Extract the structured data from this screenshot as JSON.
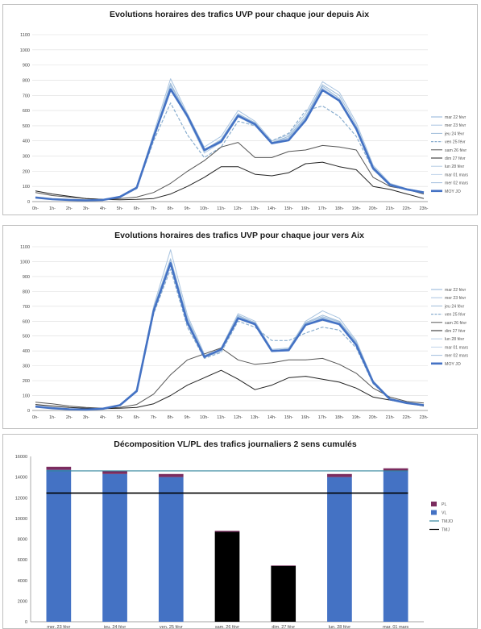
{
  "chart_data": [
    {
      "type": "line",
      "title": "Evolutions horaires des trafics UVP pour chaque jour  depuis Aix",
      "x": [
        "0h-",
        "1h-",
        "2h-",
        "3h-",
        "4h-",
        "5h-",
        "6h-",
        "7h-",
        "8h-",
        "9h-",
        "10h-",
        "11h-",
        "12h-",
        "13h-",
        "14h-",
        "15h-",
        "16h-",
        "17h-",
        "18h-",
        "19h-",
        "20h-",
        "21h-",
        "22h-",
        "23h-"
      ],
      "ylim": [
        0,
        1100
      ],
      "yticks": [
        0,
        100,
        200,
        300,
        400,
        500,
        600,
        700,
        800,
        900,
        1000,
        1100
      ],
      "grid": true,
      "legend_position": "right",
      "series": [
        {
          "name": "mar 22 févr",
          "color": "#8fb3d9",
          "dash": false,
          "width": 1,
          "values": [
            25,
            15,
            10,
            8,
            10,
            30,
            90,
            420,
            760,
            560,
            330,
            400,
            570,
            510,
            390,
            420,
            550,
            760,
            680,
            480,
            220,
            110,
            80,
            60
          ]
        },
        {
          "name": "mer 23 févr",
          "color": "#a9c4e0",
          "dash": false,
          "width": 1,
          "values": [
            30,
            18,
            12,
            9,
            12,
            35,
            95,
            450,
            810,
            580,
            360,
            430,
            600,
            530,
            400,
            440,
            580,
            790,
            720,
            520,
            240,
            120,
            85,
            65
          ]
        },
        {
          "name": "jeu 24 févr",
          "color": "#9dbbd9",
          "dash": false,
          "width": 1,
          "values": [
            28,
            16,
            11,
            8,
            11,
            32,
            92,
            430,
            780,
            570,
            340,
            410,
            580,
            520,
            390,
            430,
            560,
            770,
            700,
            500,
            230,
            115,
            82,
            62
          ]
        },
        {
          "name": "ven 25 févr",
          "color": "#8aaecf",
          "dash": true,
          "width": 1.2,
          "values": [
            28,
            16,
            11,
            8,
            11,
            30,
            85,
            400,
            650,
            440,
            290,
            360,
            530,
            500,
            400,
            450,
            600,
            630,
            560,
            430,
            210,
            110,
            80,
            60
          ]
        },
        {
          "name": "sam 26 févr",
          "color": "#555555",
          "dash": false,
          "width": 1,
          "values": [
            60,
            40,
            30,
            20,
            15,
            20,
            30,
            60,
            120,
            200,
            270,
            360,
            390,
            290,
            290,
            330,
            340,
            370,
            360,
            340,
            160,
            100,
            80,
            50
          ]
        },
        {
          "name": "dim 27 févr",
          "color": "#222222",
          "dash": false,
          "width": 1,
          "values": [
            70,
            50,
            35,
            20,
            15,
            12,
            15,
            20,
            50,
            100,
            160,
            230,
            230,
            180,
            170,
            190,
            250,
            260,
            230,
            210,
            100,
            80,
            50,
            20
          ]
        },
        {
          "name": "lun 28 févr",
          "color": "#b3cbe4",
          "dash": false,
          "width": 1,
          "values": [
            25,
            15,
            10,
            8,
            10,
            28,
            88,
            410,
            740,
            550,
            320,
            390,
            560,
            500,
            380,
            400,
            530,
            740,
            660,
            470,
            210,
            105,
            78,
            58
          ]
        },
        {
          "name": "mar 01 mars",
          "color": "#c0d4ea",
          "dash": false,
          "width": 1,
          "values": [
            26,
            15,
            10,
            8,
            10,
            30,
            90,
            420,
            760,
            565,
            335,
            400,
            570,
            505,
            385,
            410,
            540,
            750,
            670,
            480,
            215,
            108,
            80,
            60
          ]
        },
        {
          "name": "mer 02 mars",
          "color": "#a0bedd",
          "dash": false,
          "width": 1,
          "values": [
            27,
            16,
            11,
            8,
            11,
            31,
            92,
            425,
            770,
            570,
            340,
            405,
            575,
            510,
            390,
            420,
            550,
            760,
            680,
            485,
            220,
            110,
            81,
            61
          ]
        },
        {
          "name": "MOY JO",
          "color": "#4472c4",
          "dash": false,
          "width": 2.6,
          "values": [
            27,
            16,
            11,
            8,
            11,
            31,
            92,
            425,
            740,
            565,
            340,
            395,
            565,
            510,
            385,
            405,
            535,
            735,
            665,
            480,
            220,
            110,
            80,
            60
          ]
        }
      ]
    },
    {
      "type": "line",
      "title": "Evolutions horaires des trafics UVP pour chaque jour  vers Aix",
      "x": [
        "0h-",
        "1h-",
        "2h-",
        "3h-",
        "4h-",
        "5h-",
        "6h-",
        "7h-",
        "8h-",
        "9h-",
        "10h-",
        "11h-",
        "12h-",
        "13h-",
        "14h-",
        "15h-",
        "16h-",
        "17h-",
        "18h-",
        "19h-",
        "20h-",
        "21h-",
        "22h-",
        "23h-"
      ],
      "ylim": [
        0,
        1100
      ],
      "yticks": [
        0,
        100,
        200,
        300,
        400,
        500,
        600,
        700,
        800,
        900,
        1000,
        1100
      ],
      "grid": true,
      "legend_position": "right",
      "series": [
        {
          "name": "mar 22 févr",
          "color": "#8fb3d9",
          "dash": false,
          "width": 1,
          "values": [
            25,
            15,
            8,
            6,
            12,
            35,
            130,
            680,
            1000,
            600,
            370,
            400,
            630,
            580,
            400,
            410,
            580,
            620,
            590,
            450,
            190,
            75,
            50,
            35
          ]
        },
        {
          "name": "mer 23 févr",
          "color": "#a9c4e0",
          "dash": false,
          "width": 1,
          "values": [
            28,
            16,
            9,
            7,
            13,
            38,
            140,
            700,
            1080,
            640,
            380,
            420,
            650,
            600,
            410,
            420,
            600,
            670,
            620,
            470,
            200,
            80,
            55,
            40
          ]
        },
        {
          "name": "jeu 24 févr",
          "color": "#9dbbd9",
          "dash": false,
          "width": 1,
          "values": [
            26,
            15,
            8,
            6,
            12,
            36,
            135,
            690,
            1020,
            620,
            370,
            410,
            640,
            590,
            400,
            415,
            590,
            640,
            600,
            460,
            195,
            78,
            52,
            38
          ]
        },
        {
          "name": "ven 25 févr",
          "color": "#8aaecf",
          "dash": true,
          "width": 1.2,
          "values": [
            26,
            15,
            8,
            6,
            12,
            34,
            125,
            650,
            950,
            560,
            350,
            390,
            600,
            560,
            470,
            470,
            520,
            560,
            540,
            420,
            180,
            75,
            50,
            35
          ]
        },
        {
          "name": "sam 26 févr",
          "color": "#555555",
          "dash": false,
          "width": 1,
          "values": [
            55,
            45,
            30,
            20,
            15,
            20,
            40,
            110,
            240,
            340,
            380,
            420,
            340,
            310,
            320,
            340,
            340,
            350,
            310,
            250,
            150,
            90,
            60,
            50
          ]
        },
        {
          "name": "dim 27 févr",
          "color": "#222222",
          "dash": false,
          "width": 1,
          "values": [
            40,
            30,
            20,
            15,
            12,
            15,
            20,
            45,
            100,
            170,
            220,
            270,
            210,
            140,
            170,
            220,
            230,
            210,
            190,
            150,
            90,
            70,
            50,
            30
          ]
        },
        {
          "name": "lun 28 févr",
          "color": "#b3cbe4",
          "dash": false,
          "width": 1,
          "values": [
            24,
            14,
            8,
            6,
            11,
            33,
            128,
            670,
            990,
            590,
            360,
            395,
            620,
            575,
            395,
            405,
            575,
            615,
            585,
            445,
            185,
            74,
            49,
            34
          ]
        },
        {
          "name": "mar 01 mars",
          "color": "#c0d4ea",
          "dash": false,
          "width": 1,
          "values": [
            25,
            15,
            8,
            6,
            12,
            35,
            130,
            680,
            1005,
            605,
            365,
            400,
            630,
            580,
            400,
            410,
            580,
            625,
            590,
            450,
            190,
            75,
            50,
            35
          ]
        },
        {
          "name": "mer 02 mars",
          "color": "#a0bedd",
          "dash": false,
          "width": 1,
          "values": [
            26,
            15,
            8,
            6,
            12,
            36,
            132,
            685,
            1010,
            610,
            368,
            405,
            635,
            585,
            402,
            412,
            585,
            630,
            595,
            455,
            192,
            76,
            51,
            36
          ]
        },
        {
          "name": "MOY JO",
          "color": "#4472c4",
          "dash": false,
          "width": 2.6,
          "values": [
            26,
            15,
            8,
            6,
            12,
            35,
            130,
            670,
            990,
            590,
            360,
            410,
            620,
            580,
            400,
            405,
            575,
            610,
            580,
            440,
            190,
            75,
            50,
            35
          ]
        }
      ]
    },
    {
      "type": "bar",
      "stacked": true,
      "title": "Décomposition VL/PL des trafics journaliers  2 sens cumulés",
      "categories": [
        "mer. 23 févr",
        "jeu. 24 févr",
        "ven. 25 févr",
        "sam. 26 févr",
        "dim. 27 févr",
        "lun. 28 févr",
        "mar. 01 mars"
      ],
      "ylim": [
        0,
        16000
      ],
      "yticks": [
        0,
        2000,
        4000,
        6000,
        8000,
        10000,
        12000,
        14000,
        16000
      ],
      "grid": false,
      "legend_position": "right",
      "series": [
        {
          "name": "VL",
          "color": "#4472c4",
          "weekend_color": "#000000",
          "values": [
            14700,
            14300,
            14000,
            8700,
            5400,
            14000,
            14600
          ]
        },
        {
          "name": "PL",
          "color": "#7b2c5f",
          "values": [
            300,
            300,
            300,
            100,
            50,
            300,
            250
          ]
        }
      ],
      "reference_lines": [
        {
          "name": "TMJO",
          "color": "#31859c",
          "value": 14600
        },
        {
          "name": "TMJ",
          "color": "#000000",
          "value": 12450
        }
      ],
      "legend": [
        {
          "label": "PL",
          "color": "#7b2c5f",
          "kind": "box"
        },
        {
          "label": "VL",
          "color": "#4472c4",
          "kind": "box"
        },
        {
          "label": "TMJO",
          "color": "#31859c",
          "kind": "line"
        },
        {
          "label": "TMJ",
          "color": "#000000",
          "kind": "line"
        }
      ]
    }
  ]
}
